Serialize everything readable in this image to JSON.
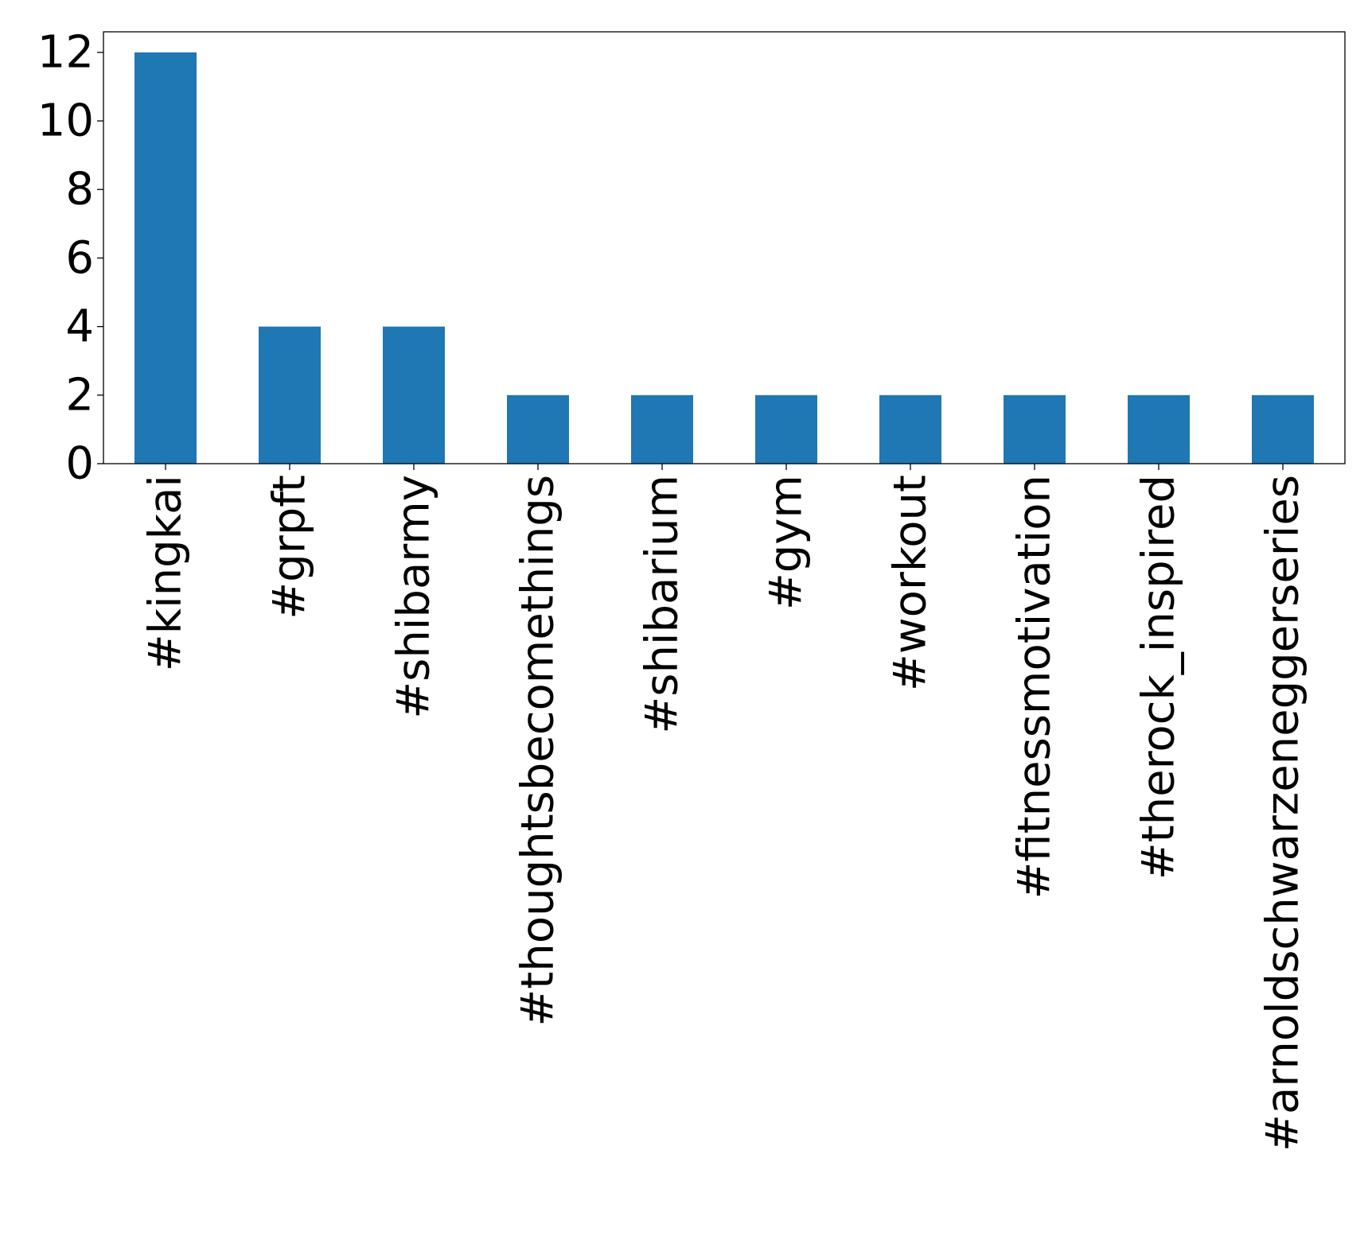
{
  "chart_data": {
    "type": "bar",
    "categories": [
      "#kingkai",
      "#grpft",
      "#shibarmy",
      "#thoughtsbecomethings",
      "#shibarium",
      "#gym",
      "#workout",
      "#fitnessmotivation",
      "#therock_inspired",
      "#arnoldschwarzeneggerseries"
    ],
    "values": [
      12,
      4,
      4,
      2,
      2,
      2,
      2,
      2,
      2,
      2
    ],
    "title": "",
    "xlabel": "",
    "ylabel": "",
    "ylim": [
      0,
      12.6
    ],
    "yticks": [
      0,
      2,
      4,
      6,
      8,
      10,
      12
    ],
    "grid": false,
    "bar_color": "#1f77b4"
  }
}
